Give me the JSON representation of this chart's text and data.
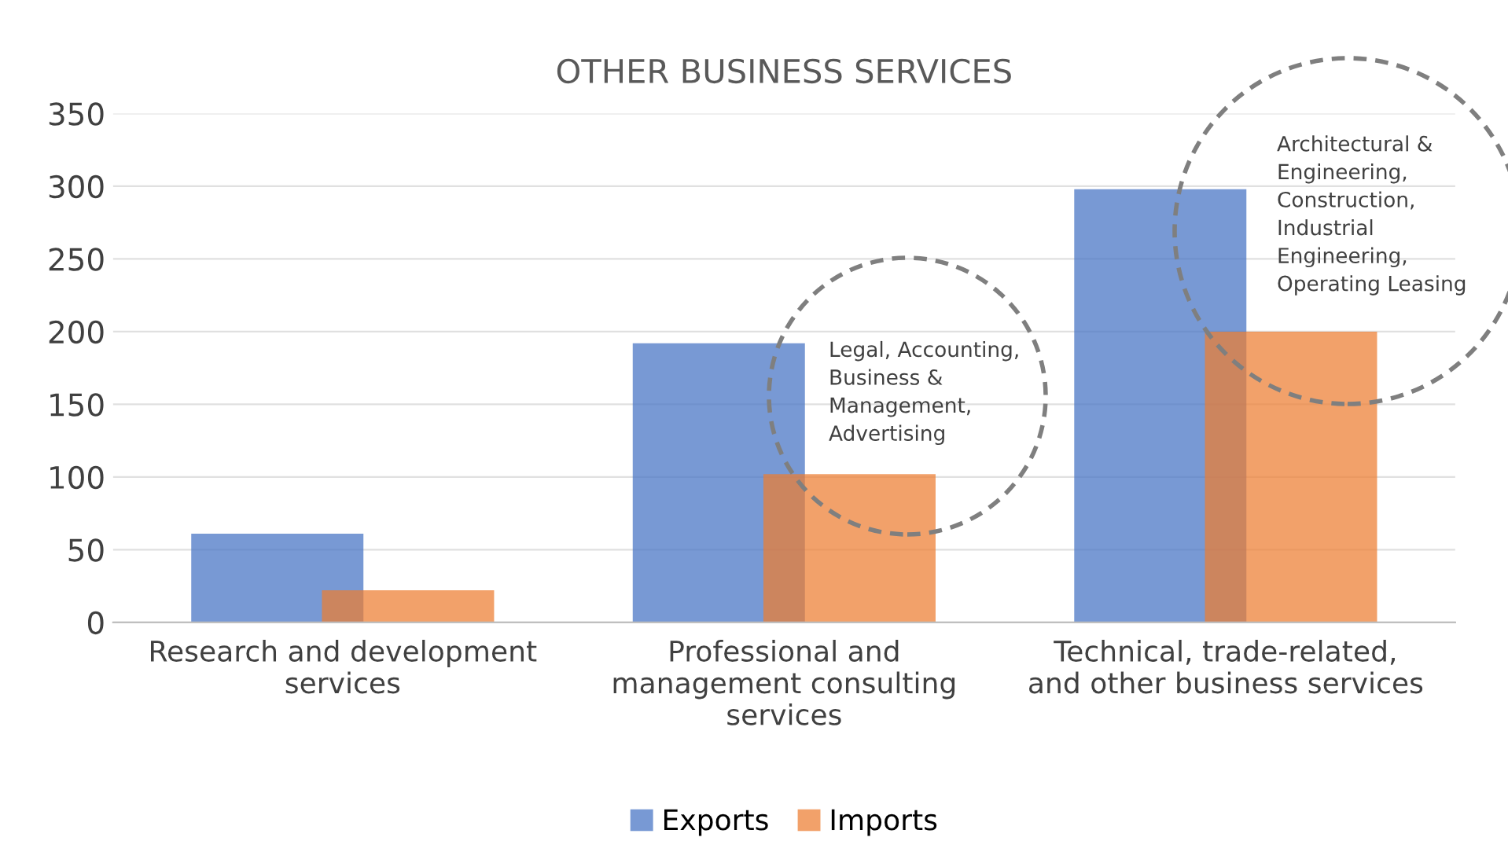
{
  "chart_data": {
    "type": "bar",
    "title": "OTHER BUSINESS SERVICES",
    "categories": [
      "Research and development\nservices",
      "Professional and\nmanagement consulting\nservices",
      "Technical, trade-related,\nand other business services"
    ],
    "series": [
      {
        "name": "Exports",
        "color": "#4472c4",
        "values": [
          61,
          192,
          298
        ]
      },
      {
        "name": "Imports",
        "color": "#ed7d31",
        "values": [
          22,
          102,
          200
        ]
      }
    ],
    "ylim": [
      0,
      350
    ],
    "yticks": [
      0,
      50,
      100,
      150,
      200,
      250,
      300,
      350
    ],
    "grid": "y",
    "legend": "bottom",
    "annotations": [
      "Legal, Accounting,\nBusiness &\nManagement,\nAdvertising",
      "Architectural &\nEngineering,\nConstruction,\nIndustrial\nEngineering,\nOperating Leasing"
    ]
  }
}
